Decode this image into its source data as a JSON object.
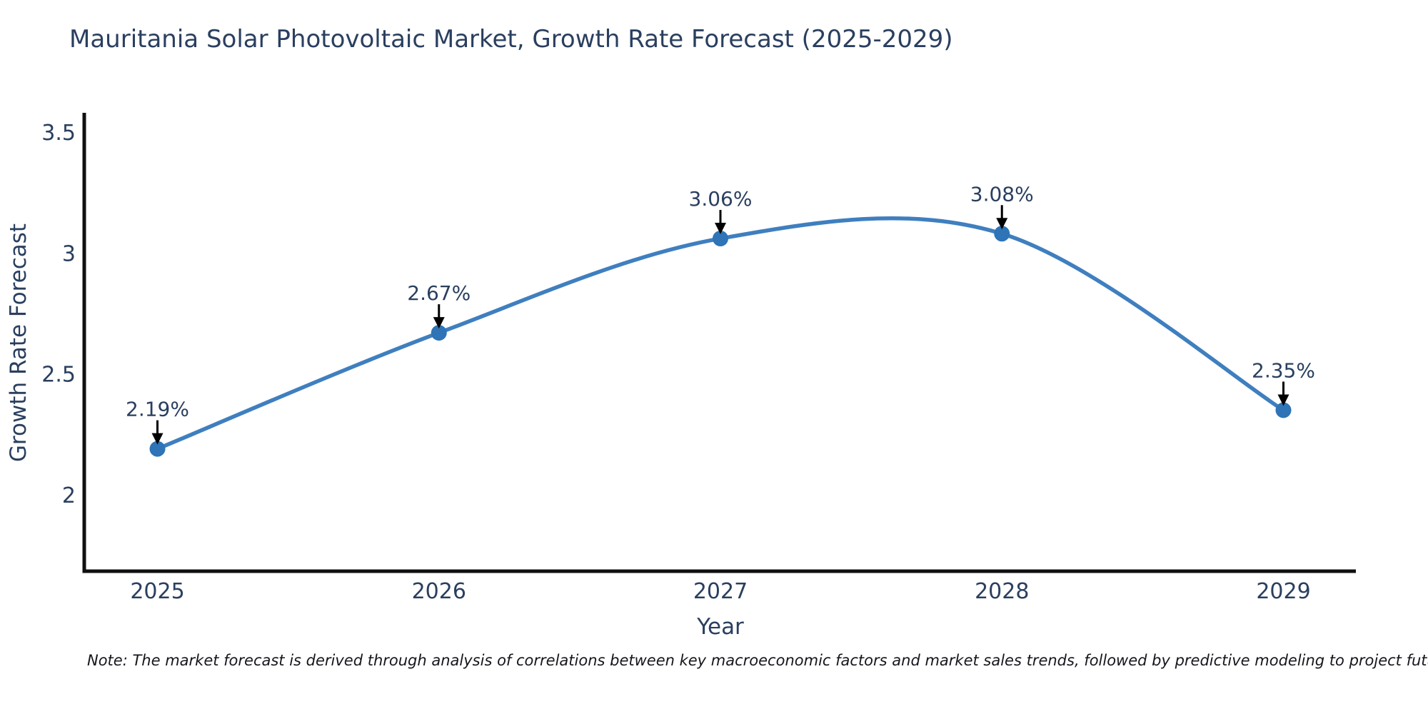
{
  "page": {
    "background": "#ffffff"
  },
  "chart_data": {
    "type": "line",
    "title": "Mauritania Solar Photovoltaic Market, Growth Rate Forecast (2025-2029)",
    "xlabel": "Year",
    "ylabel": "Growth Rate Forecast",
    "x": [
      2025,
      2026,
      2027,
      2028,
      2029
    ],
    "series": [
      {
        "name": "Growth Rate Forecast",
        "values": [
          2.19,
          2.67,
          3.06,
          3.08,
          2.35
        ],
        "point_labels": [
          "2.19%",
          "2.67%",
          "3.06%",
          "3.08%",
          "2.35%"
        ]
      }
    ],
    "line_shape": "spline",
    "grid": false,
    "legend_position": "none",
    "xlim": [
      2024.74,
      2029.26
    ],
    "ylim": [
      1.684,
      3.574
    ],
    "xticks": [
      "2025",
      "2026",
      "2027",
      "2028",
      "2029"
    ],
    "xtick_values": [
      2025,
      2026,
      2027,
      2028,
      2029
    ],
    "yticks": [
      "2",
      "2.5",
      "3",
      "3.5"
    ],
    "ytick_values": [
      2,
      2.5,
      3,
      3.5
    ],
    "colors": {
      "line": "#3f7fbf",
      "marker": "#2e74b6",
      "annotation_text": "#2a3f5f",
      "annotation_arrow": "#000000",
      "axis_line": "#101010",
      "title_text": "#2a3f5f",
      "note_text": "#16161d"
    },
    "note": "Note: The market forecast is derived through analysis of correlations between key macroeconomic factors and market sales trends, followed by predictive modeling to project future sales"
  }
}
